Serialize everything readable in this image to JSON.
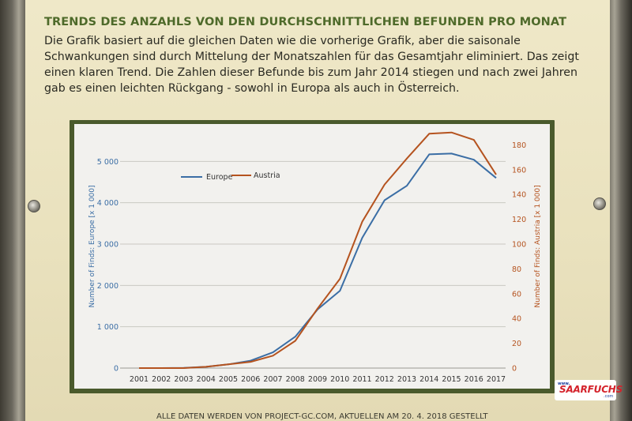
{
  "poster": {
    "heading": "TRENDS DES ANZAHLS VON DEN DURCHSCHNITTLICHEN BEFUNDEN PRO MONAT",
    "paragraph_lines": [
      "Die Grafik basiert auf die gleichen Daten wie die vorherige Grafik, aber die saisonale",
      "Schwankungen sind durch Mittelung der Monatszahlen für das Gesamtjahr eliminiert. Das zeigt",
      "einen klaren Trend. Die Zahlen dieser Befunde bis zum Jahr 2014 stiegen und nach zwei Jahren",
      "gab es einen leichten Rückgang - sowohl in Europa als auch in Österreich."
    ],
    "footer": "ALLE DATEN WERDEN VON PROJECT-GC.COM, AKTUELLEN AM 20. 4. 2018 GESTELLT",
    "colors": {
      "heading": "#4e6a2a",
      "chart_border": "#4a5a2c",
      "background": "#ece5c3"
    }
  },
  "watermark": {
    "www": "www.",
    "name": "SAARFUCHS",
    "suffix": ".com"
  },
  "chart_data": {
    "type": "line",
    "x": [
      "2001",
      "2002",
      "2003",
      "2004",
      "2005",
      "2006",
      "2007",
      "2008",
      "2009",
      "2010",
      "2011",
      "2012",
      "2013",
      "2014",
      "2015",
      "2016",
      "2017"
    ],
    "series": [
      {
        "name": "Europe",
        "axis": "left",
        "color": "#3b6ea5",
        "values": [
          0,
          0,
          5,
          30,
          90,
          180,
          380,
          760,
          1420,
          1870,
          3150,
          4060,
          4410,
          5170,
          5190,
          5040,
          4600
        ]
      },
      {
        "name": "Austria",
        "axis": "right",
        "color": "#b5531f",
        "values": [
          0,
          0,
          0,
          1,
          3,
          5,
          10,
          22,
          48,
          72,
          118,
          148,
          169,
          189,
          190,
          184,
          156
        ]
      }
    ],
    "ylabel_left": "Number of Finds: Europe [x 1 000]",
    "ylabel_right": "Number of Finds: Austria [x 1 000]",
    "ylim_left": [
      0,
      6000
    ],
    "ylim_right": [
      0,
      200
    ],
    "yticks_left": [
      "0",
      "1 000",
      "2 000",
      "3 000",
      "4 000",
      "5 000"
    ],
    "yticks_right": [
      "0",
      "20",
      "40",
      "60",
      "80",
      "100",
      "120",
      "140",
      "160",
      "180"
    ],
    "grid": true,
    "legend": "top-left"
  }
}
